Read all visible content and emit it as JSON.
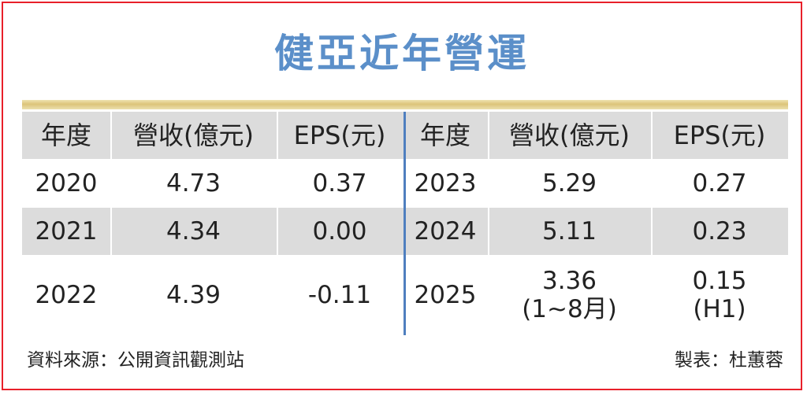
{
  "chart_data": {
    "type": "table",
    "title": "健亞近年營運",
    "columns": [
      "年度",
      "營收(億元)",
      "EPS(元)",
      "年度",
      "營收(億元)",
      "EPS(元)"
    ],
    "rows": [
      {
        "left": {
          "year": "2020",
          "revenue": "4.73",
          "eps": "0.37"
        },
        "right": {
          "year": "2023",
          "revenue": "5.29",
          "eps": "0.27"
        }
      },
      {
        "left": {
          "year": "2021",
          "revenue": "4.34",
          "eps": "0.00"
        },
        "right": {
          "year": "2024",
          "revenue": "5.11",
          "eps": "0.23"
        }
      },
      {
        "left": {
          "year": "2022",
          "revenue": "4.39",
          "eps": "-0.11"
        },
        "right": {
          "year": "2025",
          "revenue": "3.36",
          "revenue_note": "(1~8月)",
          "eps": "0.15",
          "eps_note": "(H1)"
        }
      }
    ]
  },
  "header": {
    "year": "年度",
    "revenue": "營收(億元)",
    "eps": "EPS(元)"
  },
  "footer": {
    "source": "資料來源：公開資訊觀測站",
    "maker": "製表：杜蕙蓉"
  },
  "colors": {
    "border": "#e8202a",
    "title": "#5b8fc9",
    "divider": "#4f7fbf",
    "gold_rule": "#dcc47a",
    "shade": "#dcdcdc"
  }
}
